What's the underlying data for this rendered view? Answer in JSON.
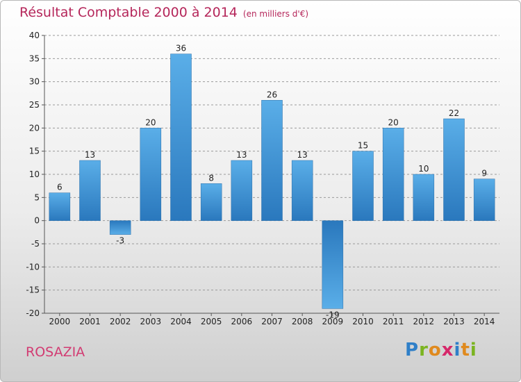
{
  "header": {
    "title": "Résultat Comptable 2000 à 2014",
    "unit": "(en milliers d'€)"
  },
  "footer": {
    "entity": "ROSAZIA",
    "logo_letters": [
      "P",
      "r",
      "o",
      "x",
      "i",
      "t",
      "i"
    ],
    "logo_colors": [
      "#2f7fc8",
      "#7bb420",
      "#e08a1e",
      "#d6286a",
      "#2f7fc8",
      "#e08a1e",
      "#7bb420"
    ]
  },
  "chart_data": {
    "type": "bar",
    "title": "Résultat Comptable 2000 à 2014",
    "subtitle": "(en milliers d'€)",
    "xlabel": "",
    "ylabel": "",
    "categories": [
      "2000",
      "2001",
      "2002",
      "2003",
      "2004",
      "2005",
      "2006",
      "2007",
      "2008",
      "2009",
      "2010",
      "2011",
      "2012",
      "2013",
      "2014"
    ],
    "values": [
      6,
      13,
      -3,
      20,
      36,
      8,
      13,
      26,
      13,
      -19,
      15,
      20,
      10,
      22,
      9
    ],
    "ylim": [
      -20,
      40
    ],
    "yticks": [
      -20,
      -15,
      -10,
      -5,
      0,
      5,
      10,
      15,
      20,
      25,
      30,
      35,
      40
    ],
    "grid": "horizontal-dashed",
    "bar_color": "#3a8fd6"
  }
}
